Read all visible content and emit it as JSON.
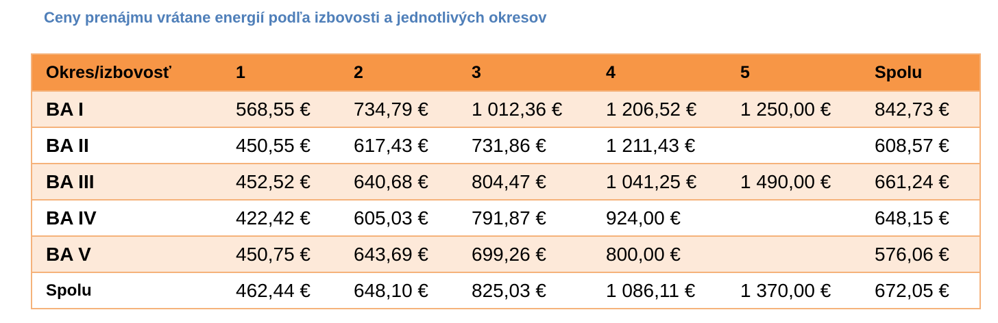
{
  "title": "Ceny prenájmu vrátane energií podľa izbovosti a jednotlivých okresov",
  "table": {
    "header": [
      "Okres/izbovosť",
      "1",
      "2",
      "3",
      "4",
      "5",
      "Spolu"
    ],
    "rows": [
      [
        "BA I",
        "568,55 €",
        "734,79 €",
        "1 012,36 €",
        "1 206,52 €",
        "1 250,00 €",
        "842,73 €"
      ],
      [
        "BA II",
        "450,55 €",
        "617,43 €",
        "731,86 €",
        "1 211,43 €",
        null,
        "608,57 €"
      ],
      [
        "BA III",
        "452,52 €",
        "640,68 €",
        "804,47 €",
        "1 041,25 €",
        "1 490,00 €",
        "661,24 €"
      ],
      [
        "BA IV",
        "422,42 €",
        "605,03 €",
        "791,87 €",
        "924,00 €",
        null,
        "648,15 €"
      ],
      [
        "BA V",
        "450,75 €",
        "643,69 €",
        "699,26 €",
        "800,00 €",
        null,
        "576,06 €"
      ],
      [
        "Spolu",
        "462,44 €",
        "648,10 €",
        "825,03 €",
        "1 086,11 €",
        "1 370,00 €",
        "672,05 €"
      ]
    ]
  }
}
